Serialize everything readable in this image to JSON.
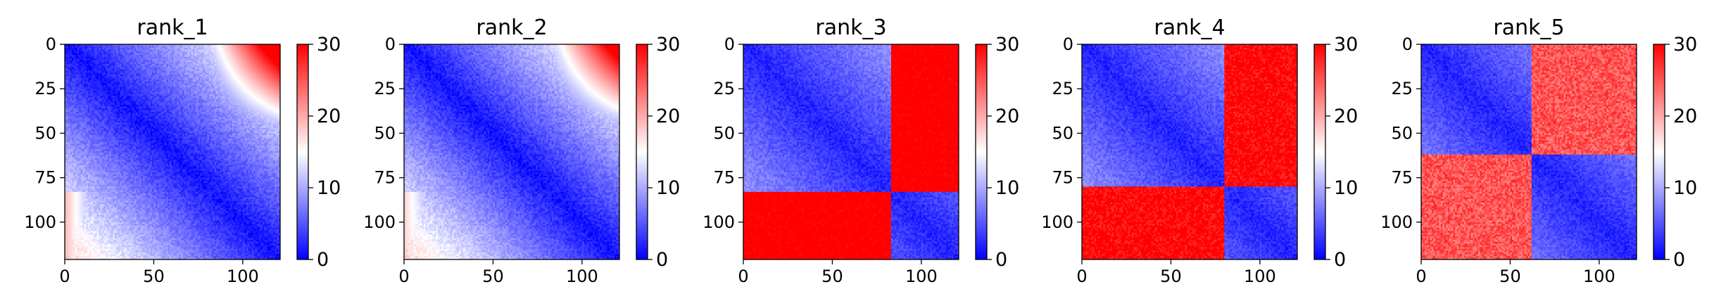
{
  "chart_data": [
    {
      "type": "heatmap",
      "title": "rank_1",
      "xlabel": "",
      "ylabel": "",
      "xlim": [
        0,
        121
      ],
      "ylim": [
        121,
        0
      ],
      "xticks": [
        0,
        50,
        100
      ],
      "yticks": [
        0,
        25,
        50,
        75,
        100
      ],
      "colormap": "bwr",
      "colorbar": {
        "vmin": 0,
        "vmax": 30,
        "ticks": [
          0,
          10,
          20,
          30
        ]
      },
      "structure": {
        "kind": "diagonal-gradient",
        "n": 121,
        "split": 83,
        "corner_value": 27
      }
    },
    {
      "type": "heatmap",
      "title": "rank_2",
      "xlabel": "",
      "ylabel": "",
      "xlim": [
        0,
        121
      ],
      "ylim": [
        121,
        0
      ],
      "xticks": [
        0,
        50,
        100
      ],
      "yticks": [
        0,
        25,
        50,
        75,
        100
      ],
      "colormap": "bwr",
      "colorbar": {
        "vmin": 0,
        "vmax": 30,
        "ticks": [
          0,
          10,
          20,
          30
        ]
      },
      "structure": {
        "kind": "diagonal-gradient",
        "n": 121,
        "split": 83,
        "corner_value": 25
      }
    },
    {
      "type": "heatmap",
      "title": "rank_3",
      "xlabel": "",
      "ylabel": "",
      "xlim": [
        0,
        121
      ],
      "ylim": [
        121,
        0
      ],
      "xticks": [
        0,
        50,
        100
      ],
      "yticks": [
        0,
        25,
        50,
        75,
        100
      ],
      "colormap": "bwr",
      "colorbar": {
        "vmin": 0,
        "vmax": 30,
        "ticks": [
          0,
          10,
          20,
          30
        ]
      },
      "structure": {
        "kind": "two-domain",
        "n": 121,
        "split": 83,
        "corner_value": 32
      }
    },
    {
      "type": "heatmap",
      "title": "rank_4",
      "xlabel": "",
      "ylabel": "",
      "xlim": [
        0,
        121
      ],
      "ylim": [
        121,
        0
      ],
      "xticks": [
        0,
        50,
        100
      ],
      "yticks": [
        0,
        25,
        50,
        75,
        100
      ],
      "colormap": "bwr",
      "colorbar": {
        "vmin": 0,
        "vmax": 30,
        "ticks": [
          0,
          10,
          20,
          30
        ]
      },
      "structure": {
        "kind": "two-domain",
        "n": 121,
        "split": 80,
        "corner_value": 30
      }
    },
    {
      "type": "heatmap",
      "title": "rank_5",
      "xlabel": "",
      "ylabel": "",
      "xlim": [
        0,
        121
      ],
      "ylim": [
        121,
        0
      ],
      "xticks": [
        0,
        50,
        100
      ],
      "yticks": [
        0,
        25,
        50,
        75,
        100
      ],
      "colormap": "bwr",
      "colorbar": {
        "vmin": 0,
        "vmax": 30,
        "ticks": [
          0,
          10,
          20,
          30
        ]
      },
      "structure": {
        "kind": "two-domain",
        "n": 121,
        "split": 62,
        "corner_value": 25
      }
    }
  ]
}
